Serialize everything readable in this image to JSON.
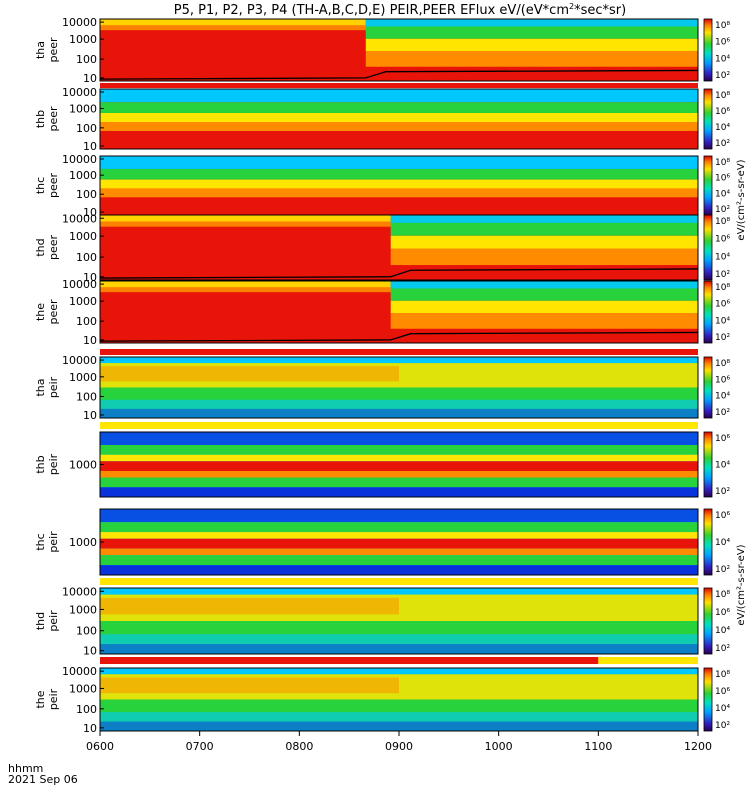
{
  "chart_data": {
    "type": "heatmap",
    "title": "P5, P1, P2, P3, P4 (TH-A,B,C,D,E) PEIR,PEER EFlux eV/(eV*cm²*sec*sr)",
    "title_parts": {
      "main": "P5, P1, P2, P3, P4 (TH-A,B,C,D,E) PEIR,PEER EFlux eV/(eV*cm",
      "sup": "2",
      "tail": "*sec*sr)"
    },
    "xaxis": {
      "ticks": [
        "0600",
        "0700",
        "0800",
        "0900",
        "1000",
        "1100",
        "1200"
      ],
      "range": [
        "0600",
        "1200"
      ],
      "label_line1": "hhmm",
      "label_line2": "2021 Sep 06"
    },
    "colorbar_ticks": [
      "10⁸",
      "10⁶",
      "10⁴",
      "10²"
    ],
    "colorbar_ticks_short": [
      "10⁶",
      "10⁴",
      "10²"
    ],
    "colorbar_label_peer": "eV/(cm²-s-sr-eV)",
    "colorbar_label_peir": "eV/(cm²-s-sr-eV)",
    "panels": [
      {
        "id": "tha-peer",
        "label_a": "tha",
        "label_b": "peer",
        "kind": "electron",
        "yticks": [
          "10000",
          "1000",
          "100",
          "10"
        ],
        "transition": "0840"
      },
      {
        "id": "thb-peer",
        "label_a": "thb",
        "label_b": "peer",
        "kind": "electron-quiet",
        "yticks": [
          "10000",
          "1000",
          "100",
          "10"
        ]
      },
      {
        "id": "thc-peer",
        "label_a": "thc",
        "label_b": "peer",
        "kind": "electron-quiet",
        "yticks": [
          "10000",
          "1000",
          "100",
          "10"
        ]
      },
      {
        "id": "thd-peer",
        "label_a": "thd",
        "label_b": "peer",
        "kind": "electron",
        "yticks": [
          "10000",
          "1000",
          "100",
          "10"
        ],
        "transition": "0855"
      },
      {
        "id": "the-peer",
        "label_a": "the",
        "label_b": "peer",
        "kind": "electron",
        "yticks": [
          "10000",
          "1000",
          "100",
          "10"
        ],
        "transition": "0855"
      },
      {
        "id": "tha-peir",
        "label_a": "tha",
        "label_b": "peir",
        "kind": "ion",
        "yticks": [
          "10000",
          "1000",
          "100",
          "10"
        ]
      },
      {
        "id": "thb-peir",
        "label_a": "thb",
        "label_b": "peir",
        "kind": "ion-quiet",
        "yticks": [
          "1000"
        ]
      },
      {
        "id": "thc-peir",
        "label_a": "thc",
        "label_b": "peir",
        "kind": "ion-quiet",
        "yticks": [
          "1000"
        ]
      },
      {
        "id": "thd-peir",
        "label_a": "thd",
        "label_b": "peir",
        "kind": "ion",
        "yticks": [
          "10000",
          "1000",
          "100",
          "10"
        ]
      },
      {
        "id": "the-peir",
        "label_a": "the",
        "label_b": "peir",
        "kind": "ion",
        "yticks": [
          "10000",
          "1000",
          "100",
          "10"
        ]
      }
    ],
    "colors": {
      "red": "#e8140a",
      "orange": "#ff8c00",
      "yellow": "#ffe600",
      "green": "#28d23c",
      "cyan": "#00c8ff",
      "blue": "#0a32dc",
      "purple": "#5a00a0"
    }
  }
}
